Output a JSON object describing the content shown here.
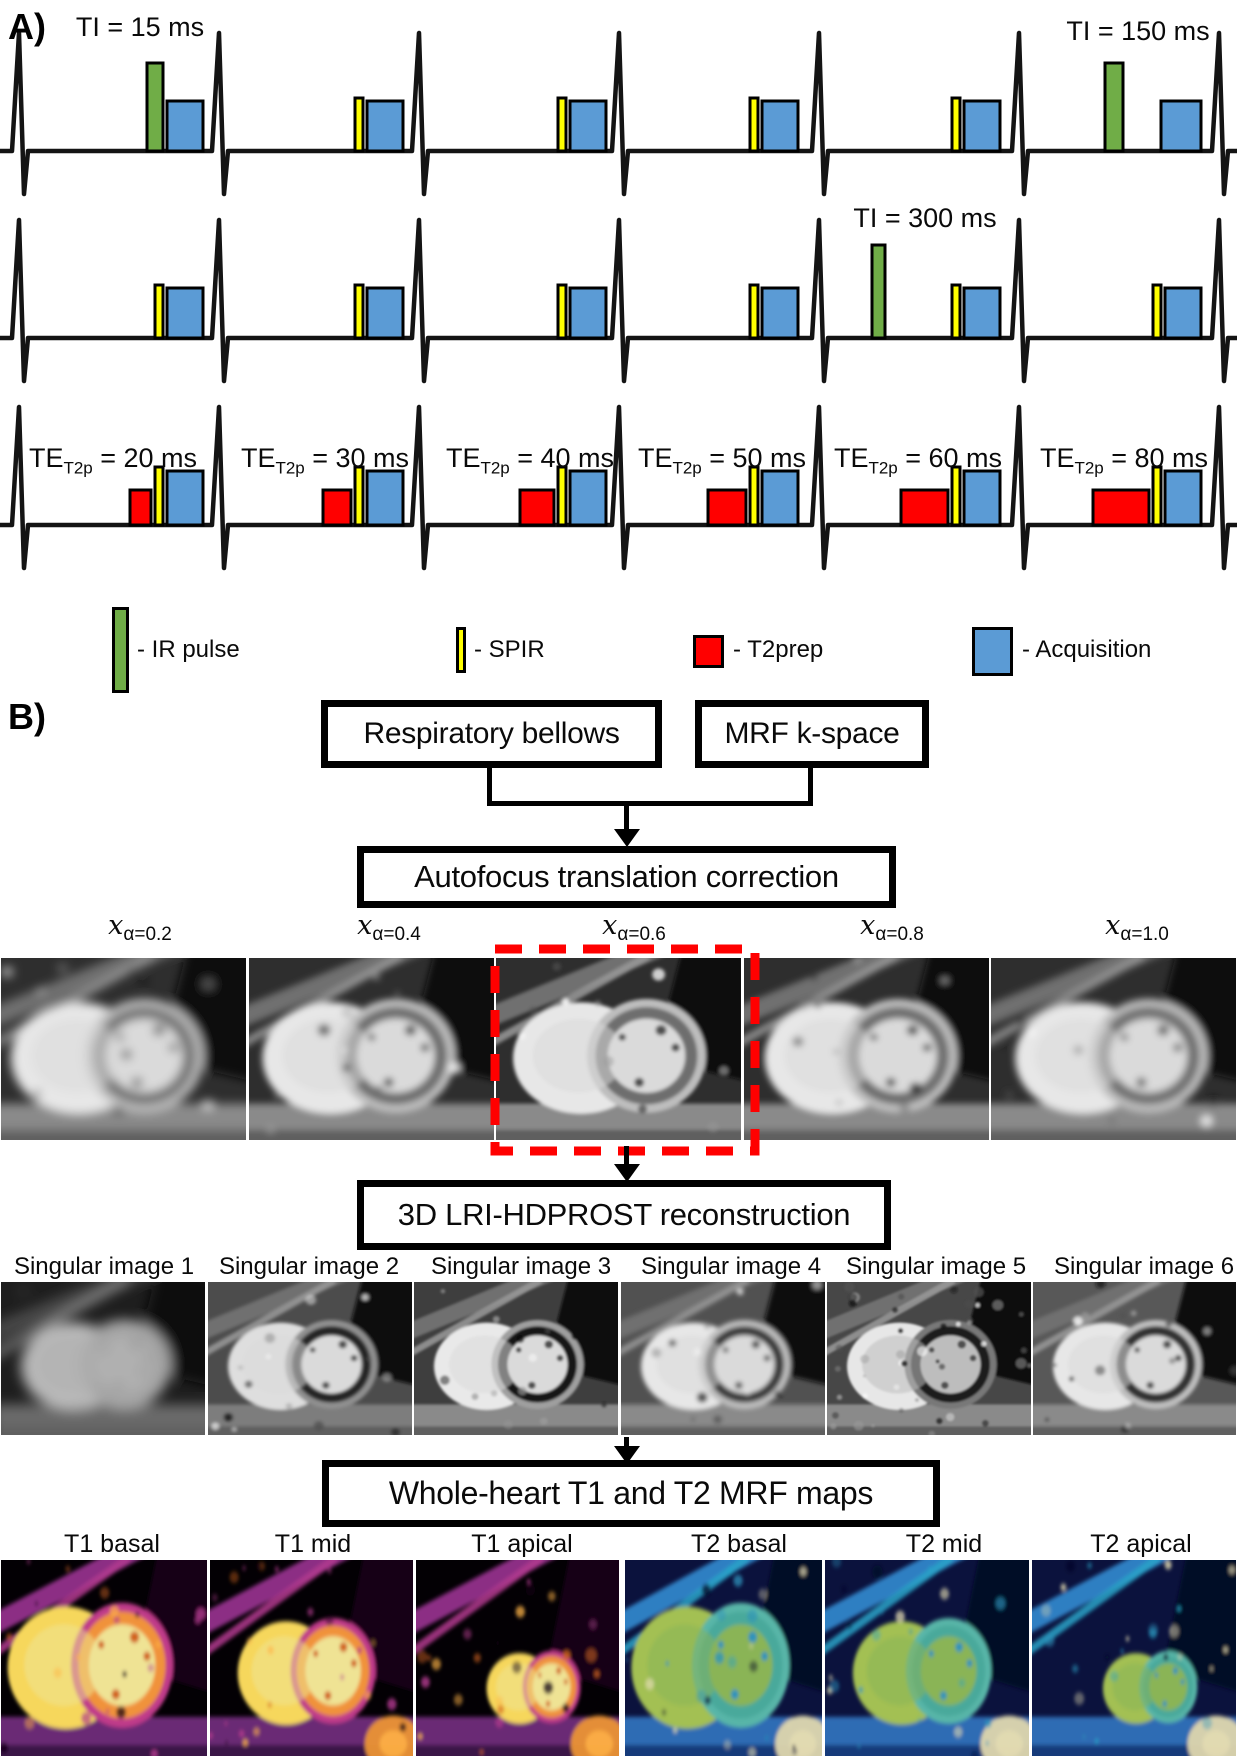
{
  "panels": {
    "a_label": "A)",
    "b_label": "B)"
  },
  "pulse_sequence": {
    "ti_labels": [
      {
        "text": "TI = 15 ms"
      },
      {
        "text": "TI = 150 ms"
      },
      {
        "text": "TI = 300 ms"
      }
    ],
    "te_labels": [
      {
        "prefix": "TE",
        "sub": "T2p",
        "rest": " = 20 ms"
      },
      {
        "prefix": "TE",
        "sub": "T2p",
        "rest": " = 30 ms"
      },
      {
        "prefix": "TE",
        "sub": "T2p",
        "rest": " = 40 ms"
      },
      {
        "prefix": "TE",
        "sub": "T2p",
        "rest": " = 50 ms"
      },
      {
        "prefix": "TE",
        "sub": "T2p",
        "rest": " = 60 ms"
      },
      {
        "prefix": "TE",
        "sub": "T2p",
        "rest": " = 80 ms"
      }
    ],
    "rows": [
      {
        "beats": [
          [
            "ir",
            "acq"
          ],
          [
            "spir",
            "acq"
          ],
          [
            "spir",
            "acq"
          ],
          [
            "spir",
            "acq"
          ],
          [
            "spir",
            "acq"
          ],
          [
            "ir_far",
            "acq"
          ]
        ]
      },
      {
        "beats": [
          [
            "spir",
            "acq"
          ],
          [
            "spir",
            "acq"
          ],
          [
            "spir",
            "acq"
          ],
          [
            "spir",
            "acq"
          ],
          [
            "ir_far",
            "spir",
            "acq"
          ],
          [
            "spir",
            "acq"
          ]
        ]
      },
      {
        "beats": [
          [
            "t2prep",
            "spir",
            "acq"
          ],
          [
            "t2prep",
            "spir",
            "acq"
          ],
          [
            "t2prep",
            "spir",
            "acq"
          ],
          [
            "t2prep",
            "spir",
            "acq"
          ],
          [
            "t2prep",
            "spir",
            "acq"
          ],
          [
            "t2prep",
            "spir",
            "acq"
          ]
        ]
      }
    ],
    "t2prep_widths": [
      21,
      28,
      34,
      38,
      47,
      56
    ],
    "legend": [
      {
        "swatch": "ir",
        "label": "- IR pulse",
        "color": "#70ad47"
      },
      {
        "swatch": "spir",
        "label": "- SPIR",
        "color": "#ffff00"
      },
      {
        "swatch": "t2prep",
        "label": "- T2prep",
        "color": "#ff0000"
      },
      {
        "swatch": "acq",
        "label": "- Acquisition",
        "color": "#5b9bd5"
      }
    ]
  },
  "flowchart": {
    "inputs": [
      {
        "label": "Respiratory bellows"
      },
      {
        "label": "MRF k-space"
      }
    ],
    "steps": [
      {
        "label": "Autofocus translation correction"
      },
      {
        "label": "3D LRI-HDPROST reconstruction"
      },
      {
        "label": "Whole-heart T1 and T2 MRF maps"
      }
    ],
    "alpha_base": "x",
    "alpha_images": [
      {
        "sub": "α=0.2",
        "style": "gray"
      },
      {
        "sub": "α=0.4",
        "style": "gray"
      },
      {
        "sub": "α=0.6",
        "style": "gray",
        "selected": true
      },
      {
        "sub": "α=0.8",
        "style": "gray"
      },
      {
        "sub": "α=1.0",
        "style": "gray"
      }
    ],
    "highlight_color": "#ff0000",
    "singular_images": [
      {
        "label": "Singular image 1"
      },
      {
        "label": "Singular image 2"
      },
      {
        "label": "Singular image 3"
      },
      {
        "label": "Singular image 4"
      },
      {
        "label": "Singular image 5"
      },
      {
        "label": "Singular image 6"
      }
    ],
    "map_images": [
      {
        "label": "T1 basal",
        "type": "t1",
        "slice": "basal"
      },
      {
        "label": "T1 mid",
        "type": "t1",
        "slice": "mid"
      },
      {
        "label": "T1 apical",
        "type": "t1",
        "slice": "apical"
      },
      {
        "label": "T2 basal",
        "type": "t2",
        "slice": "basal"
      },
      {
        "label": "T2 mid",
        "type": "t2",
        "slice": "mid"
      },
      {
        "label": "T2 apical",
        "type": "t2",
        "slice": "apical"
      }
    ]
  }
}
